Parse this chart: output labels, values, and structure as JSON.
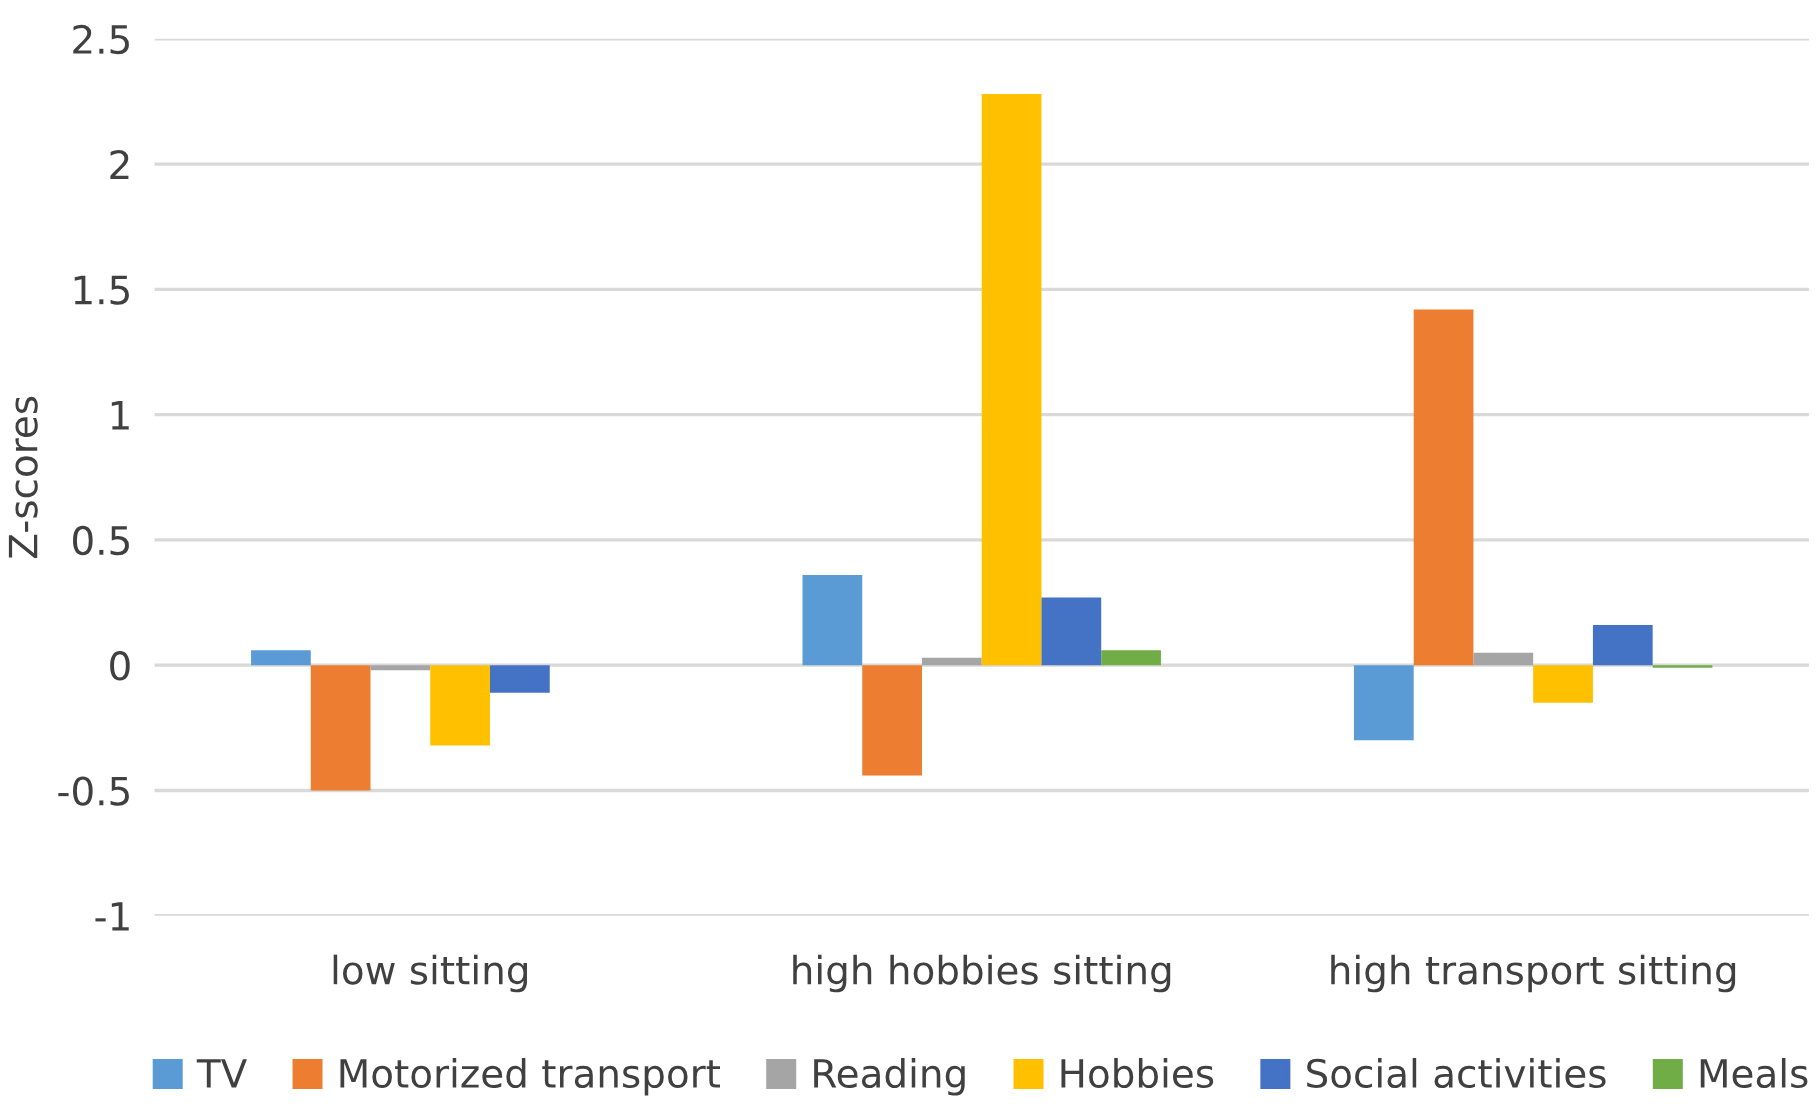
{
  "chart_data": {
    "type": "bar",
    "ylabel": "Z-scores",
    "categories": [
      "low sitting",
      "high hobbies sitting",
      "high transport sitting"
    ],
    "series": [
      {
        "name": "TV",
        "color": "#5b9bd5",
        "values": [
          0.06,
          0.36,
          -0.3
        ]
      },
      {
        "name": "Motorized transport",
        "color": "#ed7d31",
        "values": [
          -0.5,
          -0.44,
          1.42
        ]
      },
      {
        "name": "Reading",
        "color": "#a5a5a5",
        "values": [
          -0.02,
          0.03,
          0.05
        ]
      },
      {
        "name": "Hobbies",
        "color": "#ffc000",
        "values": [
          -0.32,
          2.28,
          -0.15
        ]
      },
      {
        "name": "Social activities",
        "color": "#4472c4",
        "values": [
          -0.11,
          0.27,
          0.16
        ]
      },
      {
        "name": "Meals",
        "color": "#70ad47",
        "values": [
          0,
          0.06,
          -0.01
        ]
      }
    ],
    "ylim": [
      -1,
      2.5
    ],
    "yticks": [
      -1,
      -0.5,
      0,
      0.5,
      1,
      1.5,
      2,
      2.5
    ],
    "grid": "y",
    "legend": "bottom"
  }
}
